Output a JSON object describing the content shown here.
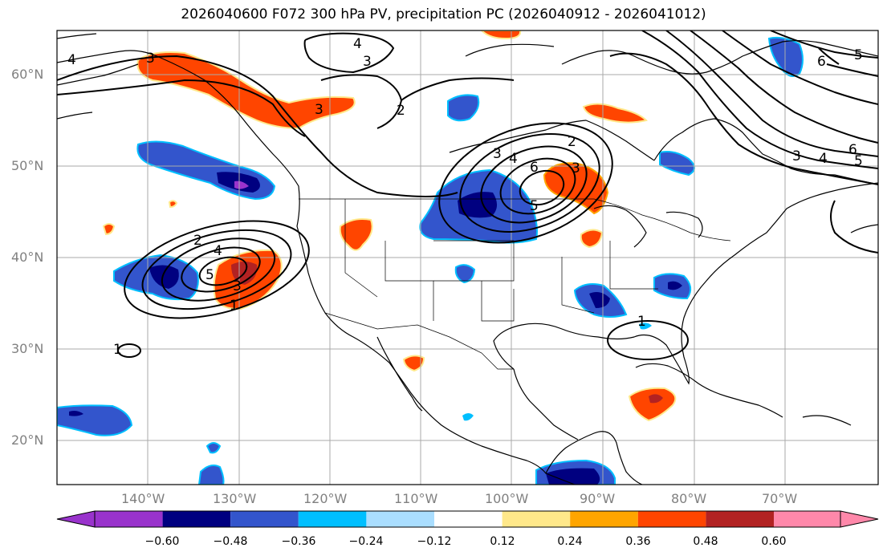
{
  "title": "2026040600 F072 300 hPa PV, precipitation PC (2026040912 - 2026041012)",
  "lat_labels": [
    "60°N",
    "50°N",
    "40°N",
    "30°N",
    "20°N"
  ],
  "lon_labels": [
    "140°W",
    "130°W",
    "120°W",
    "110°W",
    "100°W",
    "90°W",
    "80°W",
    "70°W"
  ],
  "colorbar": {
    "ticks": [
      "-0.60",
      "-0.48",
      "-0.36",
      "-0.24",
      "-0.12",
      "0.12",
      "0.24",
      "0.36",
      "0.48",
      "0.60"
    ],
    "colors": [
      "#9933cc",
      "#000080",
      "#3355cc",
      "#00bfff",
      "#aadeff",
      "#ffffff",
      "#ffe88a",
      "#ffa500",
      "#ff4500",
      "#b22222",
      "#ff88aa"
    ]
  },
  "contour_labels": [
    "4",
    "3",
    "4",
    "3",
    "2",
    "3",
    "3",
    "3",
    "4",
    "6",
    "5",
    "2",
    "4",
    "5",
    "3",
    "1",
    "1",
    "1",
    "2",
    "3",
    "6",
    "5",
    "4",
    "6",
    "5"
  ],
  "colors": {
    "contour": "#000000",
    "grid": "#aaaaaa",
    "coast": "#000000"
  }
}
